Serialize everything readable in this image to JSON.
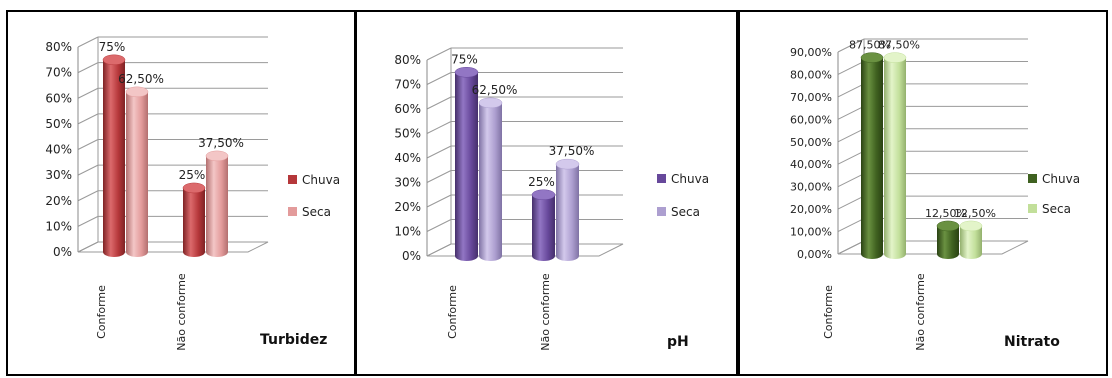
{
  "chart_data": [
    {
      "type": "bar",
      "title": "Turbidez",
      "categories": [
        "Conforme",
        "Não conforme"
      ],
      "series": [
        {
          "name": "Chuva",
          "values": [
            75,
            25
          ],
          "labels": [
            "75%",
            "25%"
          ],
          "color": "#b5373a",
          "light": "#dc6a6c",
          "dark": "#7e2224"
        },
        {
          "name": "Seca",
          "values": [
            62.5,
            37.5
          ],
          "labels": [
            "62,50%",
            "37,50%"
          ],
          "color": "#e39b9b",
          "light": "#f3c6c6",
          "dark": "#b36f6f"
        }
      ],
      "ylim": [
        0,
        80
      ],
      "yticks": [
        "0%",
        "10%",
        "20%",
        "30%",
        "40%",
        "50%",
        "60%",
        "70%",
        "80%"
      ],
      "grid": true,
      "legend": "right"
    },
    {
      "type": "bar",
      "title": "pH",
      "categories": [
        "Conforme",
        "Não conforme"
      ],
      "series": [
        {
          "name": "Chuva",
          "values": [
            75,
            25
          ],
          "labels": [
            "75%",
            "25%"
          ],
          "color": "#67489b",
          "light": "#9276c4",
          "dark": "#452f6b"
        },
        {
          "name": "Seca",
          "values": [
            62.5,
            37.5
          ],
          "labels": [
            "62,50%",
            "37,50%"
          ],
          "color": "#ad9fd0",
          "light": "#d3c9ec",
          "dark": "#7f72a4"
        }
      ],
      "ylim": [
        0,
        80
      ],
      "yticks": [
        "0%",
        "10%",
        "20%",
        "30%",
        "40%",
        "50%",
        "60%",
        "70%",
        "80%"
      ],
      "grid": true,
      "legend": "right"
    },
    {
      "type": "bar",
      "title": "Nitrato",
      "categories": [
        "Conforme",
        "Não conforme"
      ],
      "series": [
        {
          "name": "Chuva",
          "values": [
            87.5,
            12.5
          ],
          "labels": [
            "87,50%",
            "12,50%"
          ],
          "color": "#3f6120",
          "light": "#6a9141",
          "dark": "#2a4213"
        },
        {
          "name": "Seca",
          "values": [
            87.5,
            12.5
          ],
          "labels": [
            "87,50%",
            "12,50%"
          ],
          "color": "#c2df9a",
          "light": "#e3f4c9",
          "dark": "#93b06d"
        }
      ],
      "ylim": [
        0,
        90
      ],
      "yticks": [
        "0,00%",
        "10,00%",
        "20,00%",
        "30,00%",
        "40,00%",
        "50,00%",
        "60,00%",
        "70,00%",
        "80,00%",
        "90,00%"
      ],
      "grid": true,
      "legend": "right"
    }
  ]
}
